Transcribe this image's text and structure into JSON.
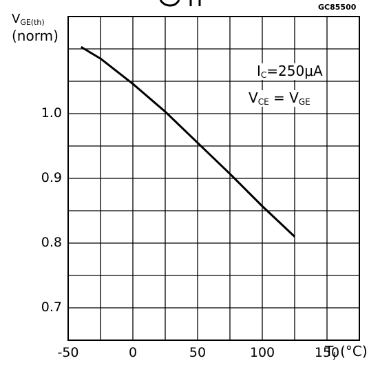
{
  "figure_code": "GC85500",
  "ylabel": {
    "main": "V",
    "sub": "GE(th)",
    "line2": "(norm)"
  },
  "xlabel": {
    "main": "T",
    "sub": "J",
    "unit": "(°C)"
  },
  "annotation": {
    "line1": {
      "main": "I",
      "sub": "C",
      "rest": "=250μA"
    },
    "line2": {
      "main1": "V",
      "sub1": "CE",
      "eq": " = ",
      "main2": "V",
      "sub2": "GE"
    }
  },
  "chart_data": {
    "type": "line",
    "title": "",
    "xlabel": "T_J (°C)",
    "ylabel": "V_GE(th) (norm)",
    "xlim": [
      -50,
      175
    ],
    "ylim": [
      0.65,
      1.15
    ],
    "x_ticks": [
      -50,
      0,
      50,
      100,
      150
    ],
    "x_tick_labels": [
      "-50",
      "0",
      "50",
      "100",
      "150"
    ],
    "y_ticks": [
      0.7,
      0.8,
      0.9,
      1.0
    ],
    "y_tick_labels": [
      "0.7",
      "0.8",
      "0.9",
      "1.0"
    ],
    "grid": true,
    "grid_x_step": 25,
    "grid_y_step": 0.05,
    "series": [
      {
        "x": [
          -40,
          -25,
          0,
          25,
          50,
          75,
          100,
          125
        ],
        "y": [
          1.103,
          1.085,
          1.046,
          1.003,
          0.955,
          0.907,
          0.857,
          0.81
        ]
      }
    ],
    "line_color": "#000000"
  }
}
